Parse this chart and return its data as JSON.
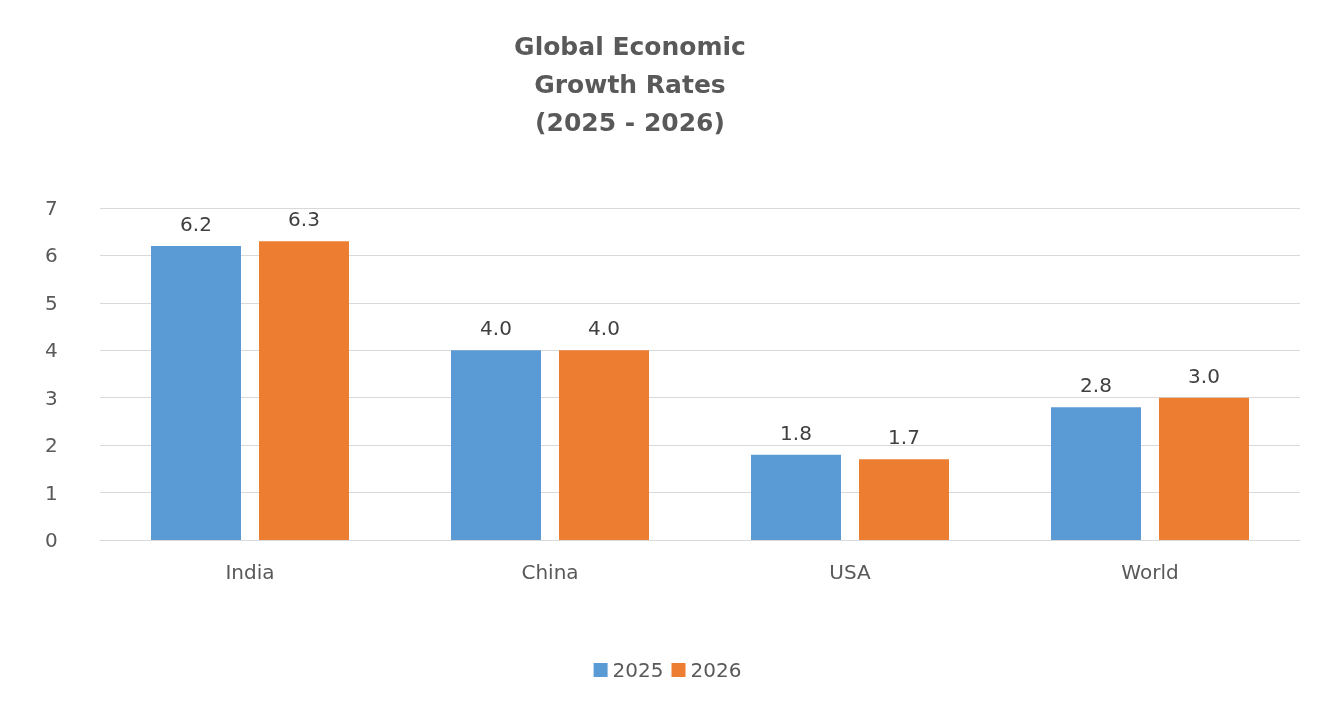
{
  "chart_data": {
    "type": "bar",
    "title": "Global Economic\nGrowth Rates\n(2025 - 2026)",
    "categories": [
      "India",
      "China",
      "USA",
      "World"
    ],
    "series": [
      {
        "name": "2025",
        "color": "#5b9bd5",
        "values": [
          6.2,
          4.0,
          1.8,
          2.8
        ],
        "value_labels": [
          "6.2",
          "4.0",
          "1.8",
          "2.8"
        ]
      },
      {
        "name": "2026",
        "color": "#ed7d31",
        "values": [
          6.3,
          4.0,
          1.7,
          3.0
        ],
        "value_labels": [
          "6.3",
          "4.0",
          "1.7",
          "3.0"
        ]
      }
    ],
    "ylim": [
      0,
      7
    ],
    "yticks": [
      0,
      1,
      2,
      3,
      4,
      5,
      6,
      7
    ],
    "grid": "y",
    "legend": "bottom"
  }
}
